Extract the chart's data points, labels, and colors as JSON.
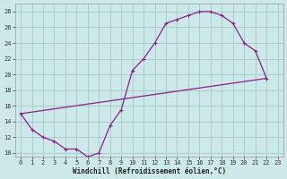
{
  "xlabel": "Windchill (Refroidissement éolien,°C)",
  "bg_color": "#cce8e8",
  "grid_color": "#aacccc",
  "line_color": "#882288",
  "xlim": [
    -0.5,
    23.5
  ],
  "ylim": [
    9.5,
    29
  ],
  "xticks": [
    0,
    1,
    2,
    3,
    4,
    5,
    6,
    7,
    8,
    9,
    10,
    11,
    12,
    13,
    14,
    15,
    16,
    17,
    18,
    19,
    20,
    21,
    22,
    23
  ],
  "yticks": [
    10,
    12,
    14,
    16,
    18,
    20,
    22,
    24,
    26,
    28
  ],
  "curve1_x": [
    0,
    1,
    2,
    3,
    4,
    5,
    6,
    7,
    8,
    9,
    10,
    11,
    12,
    13,
    14,
    15,
    16,
    17,
    18,
    19,
    20,
    21,
    22
  ],
  "curve1_y": [
    15,
    13,
    12,
    11.5,
    10.5,
    10.5,
    9.5,
    10.0,
    13.5,
    15.5,
    20.5,
    22,
    24,
    26.5,
    27,
    27.5,
    28,
    28,
    27.5,
    26.5,
    24,
    23,
    19.5
  ],
  "line3_x": [
    0,
    22
  ],
  "line3_y": [
    15,
    19.5
  ]
}
